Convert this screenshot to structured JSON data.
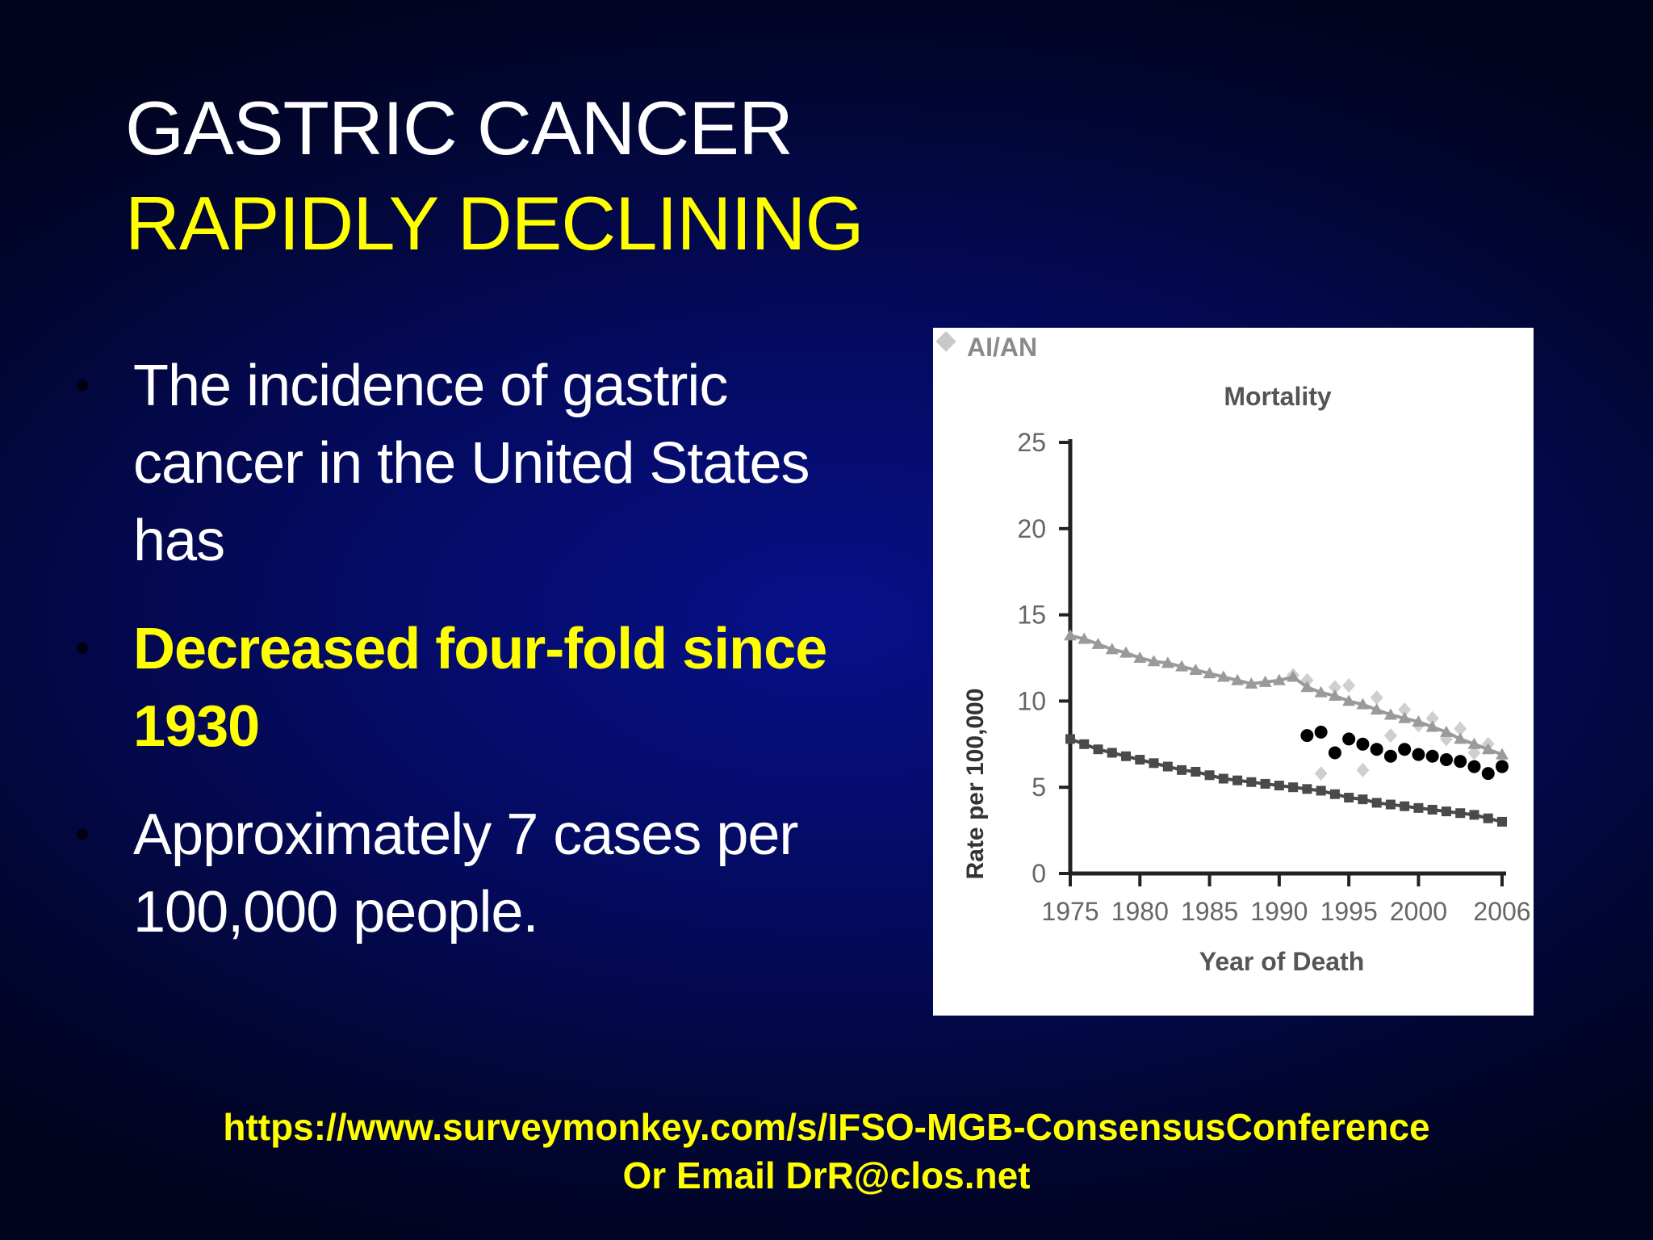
{
  "slide": {
    "title_line1": "GASTRIC CANCER",
    "title_line2": "RAPIDLY DECLINING",
    "bullets": [
      "The incidence of gastric cancer in the United States has",
      "Decreased four-fold since 1930",
      "Approximately 7 cases per 100,000 people."
    ],
    "footer_line1": "https://www.surveymonkey.com/s/IFSO-MGB-ConsensusConference",
    "footer_line2": "Or Email DrR@clos.net"
  },
  "chart_data": {
    "type": "scatter",
    "title": "Mortality",
    "legend_label": "AI/AN",
    "legend_placement": "top-left",
    "xlabel": "Year of Death",
    "ylabel": "Rate per 100,000",
    "xlim": [
      1975,
      2006
    ],
    "ylim": [
      0,
      25
    ],
    "xticks": [
      1975,
      1980,
      1985,
      1990,
      1995,
      2000,
      2006
    ],
    "yticks": [
      0,
      5,
      10,
      15,
      20,
      25
    ],
    "grid": false,
    "colors": {
      "series_a": "#9a9a9a",
      "series_b": "#4a4a4a",
      "series_c": "#000000",
      "series_d": "#cfcfcf"
    },
    "series": [
      {
        "x": [
          1975,
          1976,
          1977,
          1978,
          1979,
          1980,
          1981,
          1982,
          1983,
          1984,
          1985,
          1986,
          1987,
          1988,
          1989,
          1990,
          1991,
          1992,
          1993,
          1994,
          1995,
          1996,
          1997,
          1998,
          1999,
          2000,
          2001,
          2002,
          2003,
          2004,
          2005,
          2006
        ],
        "y": [
          13.8,
          13.6,
          13.3,
          13.0,
          12.8,
          12.5,
          12.3,
          12.2,
          12.0,
          11.8,
          11.6,
          11.4,
          11.2,
          11.0,
          11.1,
          11.2,
          11.4,
          10.8,
          10.5,
          10.3,
          10.0,
          9.8,
          9.5,
          9.2,
          9.0,
          8.8,
          8.5,
          8.2,
          7.8,
          7.5,
          7.2,
          6.9
        ]
      },
      {
        "x": [
          1975,
          1976,
          1977,
          1978,
          1979,
          1980,
          1981,
          1982,
          1983,
          1984,
          1985,
          1986,
          1987,
          1988,
          1989,
          1990,
          1991,
          1992,
          1993,
          1994,
          1995,
          1996,
          1997,
          1998,
          1999,
          2000,
          2001,
          2002,
          2003,
          2004,
          2005,
          2006
        ],
        "y": [
          7.8,
          7.5,
          7.2,
          7.0,
          6.8,
          6.6,
          6.4,
          6.2,
          6.0,
          5.9,
          5.7,
          5.5,
          5.4,
          5.3,
          5.2,
          5.1,
          5.0,
          4.9,
          4.8,
          4.6,
          4.4,
          4.3,
          4.1,
          4.0,
          3.9,
          3.8,
          3.7,
          3.6,
          3.5,
          3.4,
          3.2,
          3.0
        ]
      },
      {
        "x": [
          1992,
          1993,
          1994,
          1995,
          1996,
          1997,
          1998,
          1999,
          2000,
          2001,
          2002,
          2003,
          2004,
          2005,
          2006
        ],
        "y": [
          8.0,
          8.2,
          7.0,
          7.8,
          7.5,
          7.2,
          6.8,
          7.2,
          6.9,
          6.8,
          6.6,
          6.5,
          6.2,
          5.8,
          6.2
        ]
      },
      {
        "x": [
          1991,
          1992,
          1993,
          1994,
          1995,
          1996,
          1997,
          1998,
          1999,
          2000,
          2001,
          2002,
          2003,
          2004,
          2005,
          2006
        ],
        "y": [
          11.5,
          11.2,
          5.8,
          10.8,
          10.9,
          6.0,
          10.2,
          8.0,
          9.5,
          8.6,
          9.0,
          7.8,
          8.4,
          7.0,
          7.5,
          6.4
        ]
      }
    ]
  }
}
